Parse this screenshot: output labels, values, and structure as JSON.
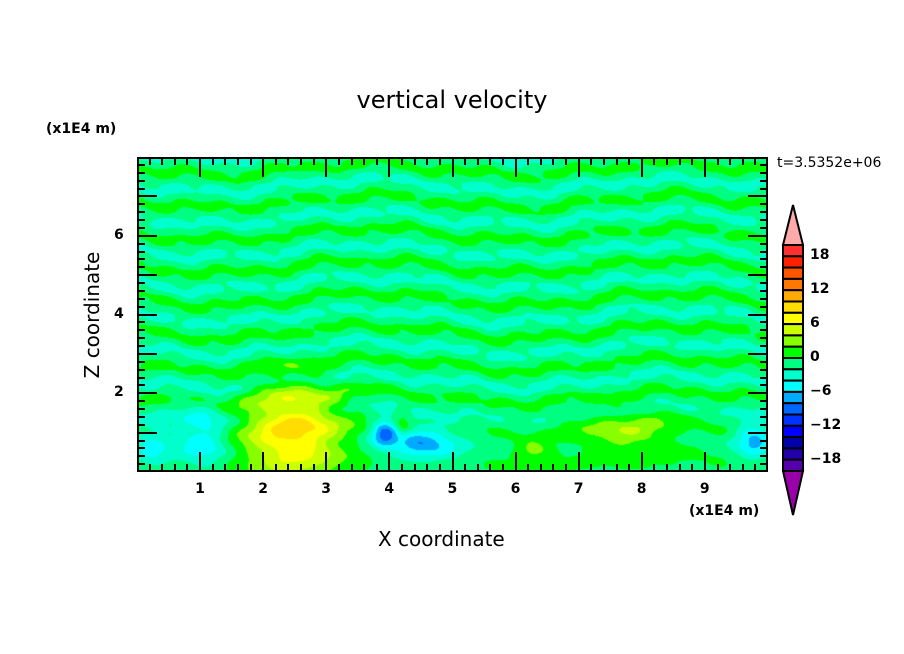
{
  "chart_data": {
    "type": "heatmap",
    "title": "vertical velocity",
    "xlabel": "X coordinate",
    "ylabel": "Z coordinate",
    "x_unit": "(x1E4 m)",
    "y_unit": "(x1E4 m)",
    "time_label": "t=3.5352e+06",
    "xlim": [
      0,
      10
    ],
    "ylim": [
      0,
      8
    ],
    "xticks": [
      "1",
      "2",
      "3",
      "4",
      "5",
      "6",
      "7",
      "8",
      "9"
    ],
    "yticks": [
      "2",
      "4",
      "6"
    ],
    "levels": {
      "min": -20,
      "max": 20,
      "step": 2
    },
    "colorbar_labels": [
      "18",
      "12",
      "6",
      "0",
      "-6",
      "-12",
      "-18"
    ],
    "colors_low_to_high": [
      "#5500aa",
      "#2200aa",
      "#0000aa",
      "#0000ff",
      "#0033ff",
      "#0066ff",
      "#00aaff",
      "#00ffff",
      "#00ffcc",
      "#00ff80",
      "#00ff00",
      "#88ff00",
      "#ccff00",
      "#ffff00",
      "#ffdd00",
      "#ffaa00",
      "#ff7700",
      "#ff5500",
      "#ff2000",
      "#ff3030"
    ],
    "under_color": "#9900aa",
    "over_color": "#ffaaaa",
    "features": [
      {
        "x": 2.45,
        "z": 1.0,
        "amp": 9.5,
        "rx": 0.75,
        "rz": 1.15
      },
      {
        "x": 1.0,
        "z": 0.8,
        "amp": -5,
        "rx": 0.4,
        "rz": 0.8
      },
      {
        "x": 0.2,
        "z": 0.6,
        "amp": -4,
        "rx": 0.3,
        "rz": 0.6
      },
      {
        "x": 3.9,
        "z": 1.0,
        "amp": -6.5,
        "rx": 0.2,
        "rz": 0.4
      },
      {
        "x": 4.5,
        "z": 0.7,
        "amp": -6.5,
        "rx": 0.6,
        "rz": 0.45
      },
      {
        "x": 4.2,
        "z": 1.1,
        "amp": 3,
        "rx": 0.12,
        "rz": 0.3
      },
      {
        "x": 6.3,
        "z": 0.5,
        "amp": 3.5,
        "rx": 0.3,
        "rz": 0.25
      },
      {
        "x": 7.8,
        "z": 0.95,
        "amp": 4,
        "rx": 0.75,
        "rz": 0.55
      },
      {
        "x": 9.8,
        "z": 0.8,
        "amp": -6,
        "rx": 0.3,
        "rz": 0.5
      }
    ]
  }
}
